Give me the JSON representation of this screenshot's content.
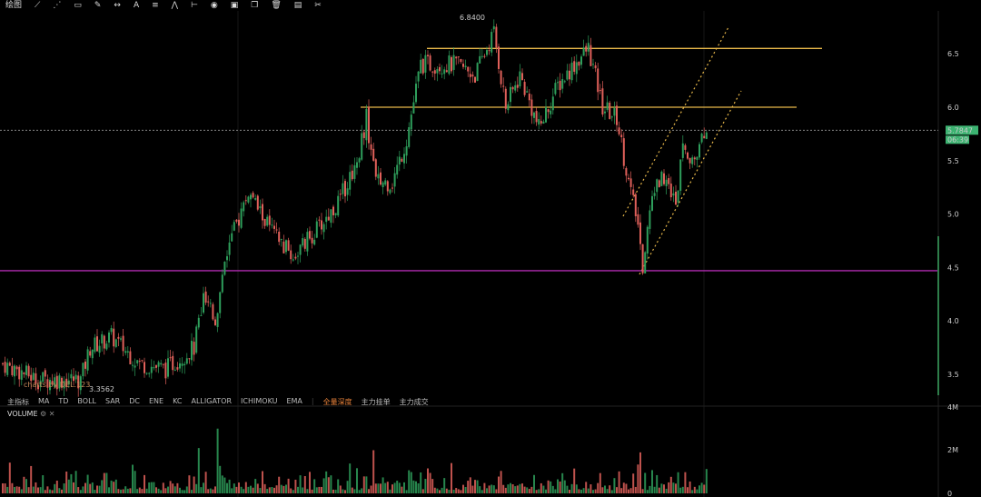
{
  "toolbar": {
    "label": "绘图",
    "icons": [
      "line-icon",
      "fib-icon",
      "rect-icon",
      "brush-icon",
      "measure-icon",
      "text-icon",
      "lines-icon",
      "pattern-icon",
      "range-icon",
      "visibility-icon",
      "lock-icon",
      "copy-icon",
      "delete-icon",
      "layers-icon",
      "magnet-icon"
    ]
  },
  "indicators": {
    "prefix": "主指标",
    "items": [
      "MA",
      "TD",
      "BOLL",
      "SAR",
      "DC",
      "ENE",
      "KC",
      "ALLIGATOR",
      "ICHIMOKU",
      "EMA"
    ],
    "cn_items": [
      "全量深度",
      "主力挂单",
      "主力成交"
    ]
  },
  "volume": {
    "label": "VOLUME",
    "axis": [
      "4M",
      "2M",
      "0"
    ]
  },
  "brand": "charts by DEL.123",
  "price": {
    "current": "5.7847",
    "countdown": "06:39",
    "high_label": "6.8400",
    "low_label": "3.3562"
  },
  "colors": {
    "up": "#2e9e5b",
    "down": "#e0605a",
    "hline": "#e8b84a",
    "support": "#b02ab0",
    "channel": "#e8b84a",
    "current": "#3cb371"
  },
  "chart_data": {
    "type": "candlestick",
    "yaxis_ticks": [
      "6.5",
      "6.0",
      "5.5",
      "5.0",
      "4.5",
      "4.0",
      "3.5"
    ],
    "ylim": [
      3.3,
      6.85
    ],
    "price_path": [
      [
        0,
        3.6
      ],
      [
        15,
        3.45
      ],
      [
        33,
        3.45
      ],
      [
        37,
        3.75
      ],
      [
        46,
        3.85
      ],
      [
        58,
        3.6
      ],
      [
        69,
        3.55
      ],
      [
        81,
        3.75
      ],
      [
        85,
        4.2
      ],
      [
        90,
        4.0
      ],
      [
        94,
        4.6
      ],
      [
        104,
        5.2
      ],
      [
        115,
        4.8
      ],
      [
        123,
        4.6
      ],
      [
        133,
        4.85
      ],
      [
        142,
        5.1
      ],
      [
        150,
        5.5
      ],
      [
        154,
        5.9
      ],
      [
        158,
        5.3
      ],
      [
        165,
        5.3
      ],
      [
        171,
        5.7
      ],
      [
        177,
        6.4
      ],
      [
        185,
        6.4
      ],
      [
        192,
        6.4
      ],
      [
        200,
        6.3
      ],
      [
        208,
        6.7
      ],
      [
        213,
        6.0
      ],
      [
        219,
        6.3
      ],
      [
        227,
        5.8
      ],
      [
        235,
        6.2
      ],
      [
        242,
        6.4
      ],
      [
        248,
        6.55
      ],
      [
        254,
        6.0
      ],
      [
        260,
        5.9
      ],
      [
        265,
        5.3
      ],
      [
        269,
        4.9
      ],
      [
        271,
        4.5
      ],
      [
        275,
        5.2
      ],
      [
        281,
        5.4
      ],
      [
        285,
        5.05
      ],
      [
        288,
        5.75
      ],
      [
        292,
        5.45
      ],
      [
        298,
        5.78
      ]
    ],
    "horizontal_lines": [
      {
        "price": 6.55,
        "color": "#e8b84a"
      },
      {
        "price": 6.0,
        "color": "#e8b84a"
      },
      {
        "price": 4.47,
        "color": "#b02ab0"
      }
    ],
    "volume_spikes": [
      {
        "bar": 91,
        "value": 3000000
      },
      {
        "bar": 83,
        "value": 2100000
      },
      {
        "bar": 157,
        "value": 2000000
      },
      {
        "bar": 270,
        "value": 1900000
      }
    ]
  }
}
